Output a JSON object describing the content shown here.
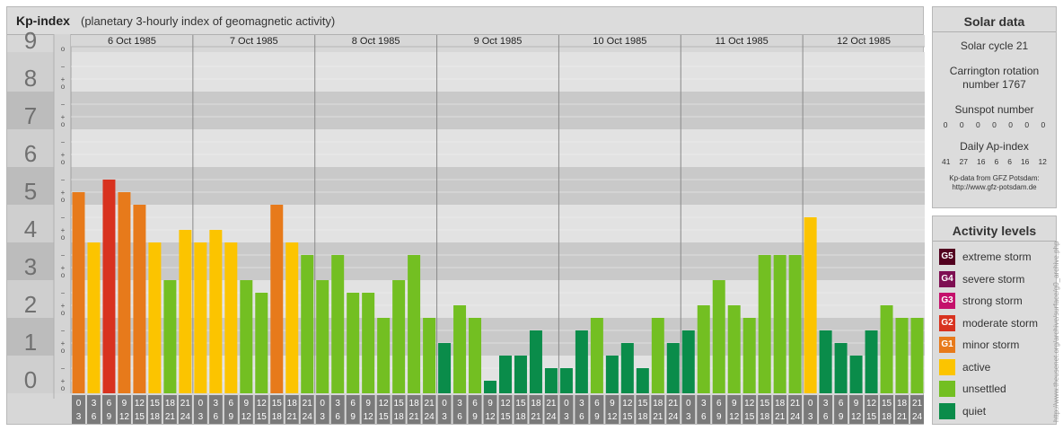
{
  "chart_panel": {
    "title": "Kp-index",
    "subtitle": "(planetary 3-hourly index of geomagnetic activity)"
  },
  "chart_data": {
    "type": "bar",
    "title": "Kp-index",
    "subtitle": "(planetary 3-hourly index of geomagnetic activity)",
    "ylim": [
      0,
      9
    ],
    "y_ticks": [
      "0",
      "1",
      "2",
      "3",
      "4",
      "5",
      "6",
      "7",
      "8",
      "9"
    ],
    "sub_ticks": [
      "o",
      "+",
      "−"
    ],
    "days": [
      "6 Oct 1985",
      "7 Oct 1985",
      "8 Oct 1985",
      "9 Oct 1985",
      "10 Oct 1985",
      "11 Oct 1985",
      "12 Oct 1985"
    ],
    "interval_start_labels": [
      "0",
      "3",
      "6",
      "9",
      "12",
      "15",
      "18",
      "21"
    ],
    "interval_end_labels": [
      "3",
      "6",
      "9",
      "12",
      "15",
      "18",
      "21",
      "24"
    ],
    "values": [
      [
        5.333,
        4.0,
        5.667,
        5.333,
        5.0,
        4.0,
        3.0,
        4.333
      ],
      [
        4.0,
        4.333,
        4.0,
        3.0,
        2.667,
        5.0,
        4.0,
        3.667
      ],
      [
        3.0,
        3.667,
        2.667,
        2.667,
        2.0,
        3.0,
        3.667,
        2.0
      ],
      [
        1.333,
        2.333,
        2.0,
        0.333,
        1.0,
        1.0,
        1.667,
        0.667
      ],
      [
        0.667,
        1.667,
        2.0,
        1.0,
        1.333,
        0.667,
        2.0,
        1.333
      ],
      [
        1.667,
        2.333,
        3.0,
        2.333,
        2.0,
        3.667,
        3.667,
        3.667
      ],
      [
        4.667,
        1.667,
        1.333,
        1.0,
        1.667,
        2.333,
        2.0,
        2.0
      ]
    ],
    "colors": {
      "quiet": "#0a8c4a",
      "unsettled": "#73bf22",
      "active": "#fcc400",
      "minor_storm": "#e77a1b",
      "moderate_storm": "#d8321f",
      "strong_storm": "#c4116b",
      "severe_storm": "#7e0f52",
      "extreme_storm": "#52001f"
    },
    "grid": true
  },
  "solar_data": {
    "title": "Solar data",
    "solar_cycle": "Solar cycle 21",
    "carrington_line1": "Carrington rotation",
    "carrington_line2": "number 1767",
    "sunspot_label": "Sunspot number",
    "sunspot_values": [
      "0",
      "0",
      "0",
      "0",
      "0",
      "0",
      "0"
    ],
    "ap_label": "Daily Ap-index",
    "ap_values": [
      "41",
      "27",
      "16",
      "6",
      "6",
      "16",
      "12"
    ],
    "source_line1": "Kp-data from GFZ Potsdam:",
    "source_line2": "http://www.gfz-potsdam.de"
  },
  "activity_levels": {
    "title": "Activity levels",
    "items": [
      {
        "code": "G5",
        "label": "extreme storm",
        "color": "#52001f"
      },
      {
        "code": "G4",
        "label": "severe storm",
        "color": "#7e0f52"
      },
      {
        "code": "G3",
        "label": "strong storm",
        "color": "#c4116b"
      },
      {
        "code": "G2",
        "label": "moderate storm",
        "color": "#d8321f"
      },
      {
        "code": "G1",
        "label": "minor storm",
        "color": "#e77a1b"
      },
      {
        "code": "",
        "label": "active",
        "color": "#fcc400"
      },
      {
        "code": "",
        "label": "unsettled",
        "color": "#73bf22"
      },
      {
        "code": "",
        "label": "quiet",
        "color": "#0a8c4a"
      }
    ]
  },
  "watermark": "http://www.theusenet.org/archive/surface/g0_archive.php"
}
